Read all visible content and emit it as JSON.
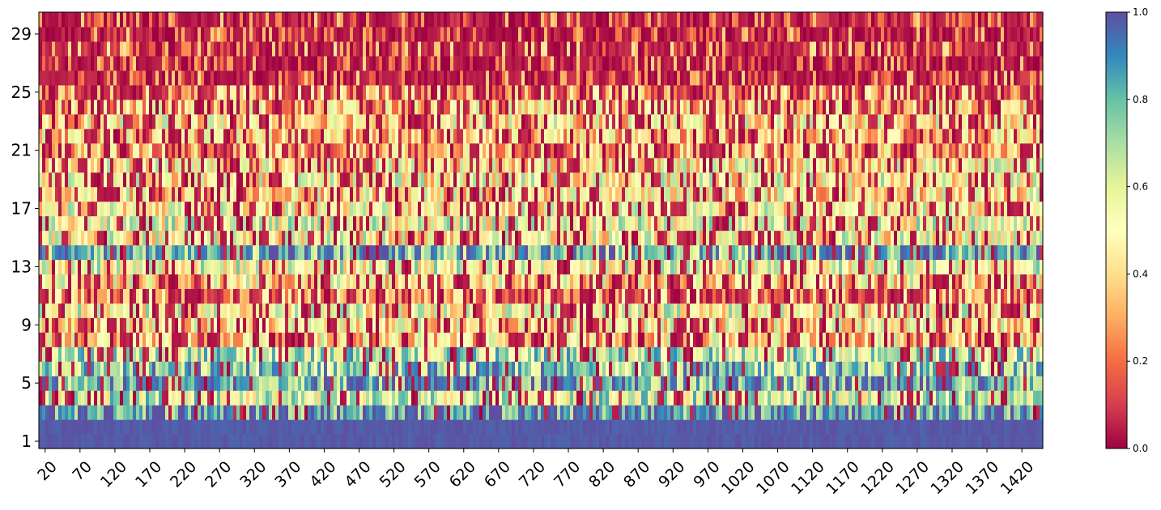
{
  "chart_data": {
    "type": "heatmap",
    "title": "",
    "xlabel": "",
    "ylabel": "",
    "x_range": [
      11,
      1450
    ],
    "y_range": [
      1,
      30
    ],
    "x_ticks": [
      "20",
      "70",
      "120",
      "170",
      "220",
      "270",
      "320",
      "370",
      "420",
      "470",
      "520",
      "570",
      "620",
      "670",
      "720",
      "770",
      "820",
      "870",
      "920",
      "970",
      "1020",
      "1070",
      "1120",
      "1170",
      "1220",
      "1270",
      "1320",
      "1370",
      "1420"
    ],
    "x_tick_values": [
      20,
      70,
      120,
      170,
      220,
      270,
      320,
      370,
      420,
      470,
      520,
      570,
      620,
      670,
      720,
      770,
      820,
      870,
      920,
      970,
      1020,
      1070,
      1120,
      1170,
      1220,
      1270,
      1320,
      1370,
      1420
    ],
    "y_ticks": [
      "1",
      "5",
      "9",
      "13",
      "17",
      "21",
      "25",
      "29"
    ],
    "y_tick_values": [
      1,
      5,
      9,
      13,
      17,
      21,
      25,
      29
    ],
    "colorscale": "Spectral",
    "colorbar": {
      "range": [
        0,
        1
      ],
      "ticks": [
        "0.0",
        "0.2",
        "0.4",
        "0.6",
        "0.8",
        "1.0"
      ],
      "tick_values": [
        0,
        0.2,
        0.4,
        0.6,
        0.8,
        1.0
      ],
      "colors": [
        "#9e0142",
        "#d53e4f",
        "#f46d43",
        "#fdae61",
        "#fee08b",
        "#ffffbf",
        "#e6f598",
        "#abdda4",
        "#66c2a5",
        "#3288bd",
        "#5e4fa2"
      ]
    },
    "row_mean_values": [
      0.98,
      0.97,
      0.88,
      0.62,
      0.82,
      0.74,
      0.65,
      0.42,
      0.45,
      0.52,
      0.3,
      0.45,
      0.55,
      0.8,
      0.5,
      0.55,
      0.5,
      0.45,
      0.5,
      0.48,
      0.35,
      0.4,
      0.45,
      0.4,
      0.3,
      0.15,
      0.15,
      0.2,
      0.15,
      0.15
    ]
  }
}
